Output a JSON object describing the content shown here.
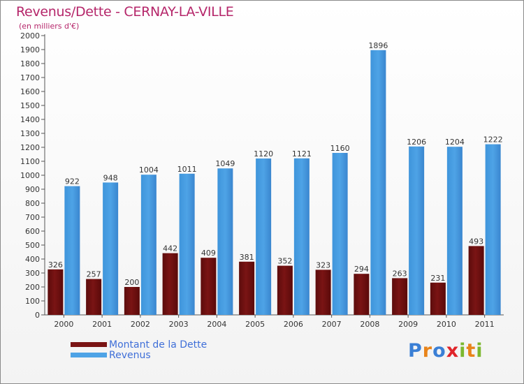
{
  "header": {
    "title": "Revenus/Dette - CERNAY-LA-VILLE",
    "subtitle": "(en milliers d'€)"
  },
  "colors": {
    "debt": "#7a1414",
    "revenue": "#4ea3e6",
    "title": "#b5266a",
    "legend_text": "#3f6fd8"
  },
  "chart_data": {
    "type": "bar",
    "title": "Revenus/Dette - CERNAY-LA-VILLE",
    "ylabel": "(en milliers d'€)",
    "xlabel": "",
    "ylim": [
      0,
      2000
    ],
    "ytick_step": 100,
    "grid": false,
    "legend_position": "bottom-left",
    "categories": [
      "2000",
      "2001",
      "2002",
      "2003",
      "2004",
      "2005",
      "2006",
      "2007",
      "2008",
      "2009",
      "2010",
      "2011"
    ],
    "series": [
      {
        "name": "Montant de la Dette",
        "values": [
          326,
          257,
          200,
          442,
          409,
          381,
          352,
          323,
          294,
          263,
          231,
          493
        ]
      },
      {
        "name": "Revenus",
        "values": [
          922,
          948,
          1004,
          1011,
          1049,
          1120,
          1121,
          1160,
          1896,
          1206,
          1204,
          1222
        ]
      }
    ]
  },
  "legend": {
    "items": [
      {
        "label": "Montant de la Dette"
      },
      {
        "label": "Revenus"
      }
    ]
  },
  "logo": {
    "text": "Proxiti",
    "letters": [
      "P",
      "r",
      "o",
      "x",
      "i",
      "t",
      "i"
    ],
    "letter_colors": [
      "#3a7fd5",
      "#e8841a",
      "#3a7fd5",
      "#e0242a",
      "#7cb82f",
      "#e8841a",
      "#7cb82f"
    ]
  }
}
